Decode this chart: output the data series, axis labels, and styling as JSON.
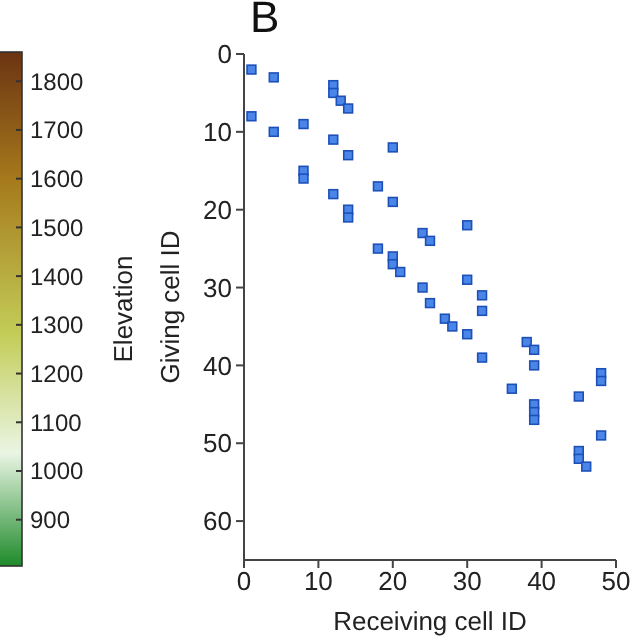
{
  "chart_data": {
    "type": "scatter",
    "title": "B",
    "xlabel": "Receiving cell ID",
    "ylabel": "Giving cell ID",
    "marker": "square",
    "clabel": "Elevation",
    "clim": [
      805,
      1860
    ],
    "cticks": [
      900,
      1000,
      1100,
      1200,
      1300,
      1400,
      1500,
      1600,
      1700,
      1800
    ],
    "xlim": [
      0,
      50
    ],
    "xticks": [
      0,
      10,
      20,
      30,
      40,
      50
    ],
    "ylim": [
      65,
      0
    ],
    "yticks": [
      0,
      10,
      20,
      30,
      40,
      50,
      60
    ],
    "series": [
      {
        "color": "#4a86e8",
        "x": [
          1,
          4,
          12,
          12,
          13,
          14,
          1,
          8,
          4,
          12,
          20,
          14,
          8,
          8,
          18,
          12,
          20,
          14,
          14,
          30,
          24,
          25,
          18,
          20,
          20,
          21,
          30,
          24,
          32,
          25,
          32,
          27,
          28,
          30,
          38,
          39,
          32,
          39,
          48,
          48,
          36,
          45,
          39,
          39,
          39,
          48,
          45,
          45,
          46
        ],
        "values": [
          2,
          3,
          4,
          5,
          6,
          7,
          8,
          9,
          10,
          11,
          12,
          13,
          15,
          16,
          17,
          18,
          19,
          20,
          21,
          22,
          23,
          24,
          25,
          26,
          27,
          28,
          29,
          30,
          31,
          32,
          33,
          34,
          35,
          36,
          37,
          38,
          39,
          40,
          41,
          42,
          43,
          44,
          45,
          46,
          47,
          49,
          51,
          52,
          53
        ]
      }
    ]
  }
}
